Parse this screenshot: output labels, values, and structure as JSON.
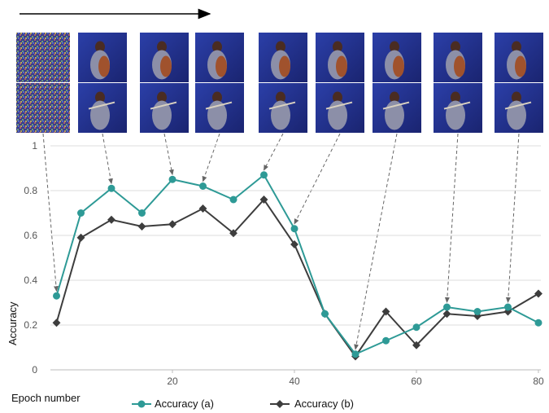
{
  "chart_data": {
    "type": "line",
    "xlabel": "Epoch number",
    "ylabel": "Accuracy",
    "xlim": [
      0,
      80
    ],
    "ylim": [
      0,
      1
    ],
    "x_ticks": [
      20,
      40,
      60,
      80
    ],
    "y_ticks": [
      0,
      0.2,
      0.4,
      0.6,
      0.8,
      1
    ],
    "y_tick_labels": [
      "0",
      "0.2",
      "0.4",
      "0.6",
      "0.8",
      "1"
    ],
    "grid": "horizontal",
    "legend_position": "bottom",
    "x": [
      1,
      5,
      10,
      15,
      20,
      25,
      30,
      35,
      40,
      45,
      50,
      55,
      60,
      65,
      70,
      75,
      80
    ],
    "series": [
      {
        "name": "Accuracy (a)",
        "color": "#2e9a96",
        "marker": "circle",
        "values": [
          0.33,
          0.7,
          0.81,
          0.7,
          0.85,
          0.82,
          0.76,
          0.87,
          0.63,
          0.25,
          0.07,
          0.13,
          0.19,
          0.28,
          0.26,
          0.28,
          0.21
        ]
      },
      {
        "name": "Accuracy (b)",
        "color": "#3d3d3d",
        "marker": "diamond",
        "values": [
          0.21,
          0.59,
          0.67,
          0.64,
          0.65,
          0.72,
          0.61,
          0.76,
          0.56,
          0.25,
          0.06,
          0.26,
          0.11,
          0.25,
          0.24,
          0.26,
          0.34
        ]
      }
    ],
    "annotations": {
      "direction_arrow": "top-left, pointing right",
      "thumbnail_epochs": [
        1,
        10,
        20,
        25,
        35,
        40,
        50,
        65,
        75
      ],
      "thumbnail_style": "two stacked photo samples per epoch, blue background",
      "thumbnail_arrows": "dashed gray arrows from each thumbnail to Accuracy (a) point"
    }
  }
}
